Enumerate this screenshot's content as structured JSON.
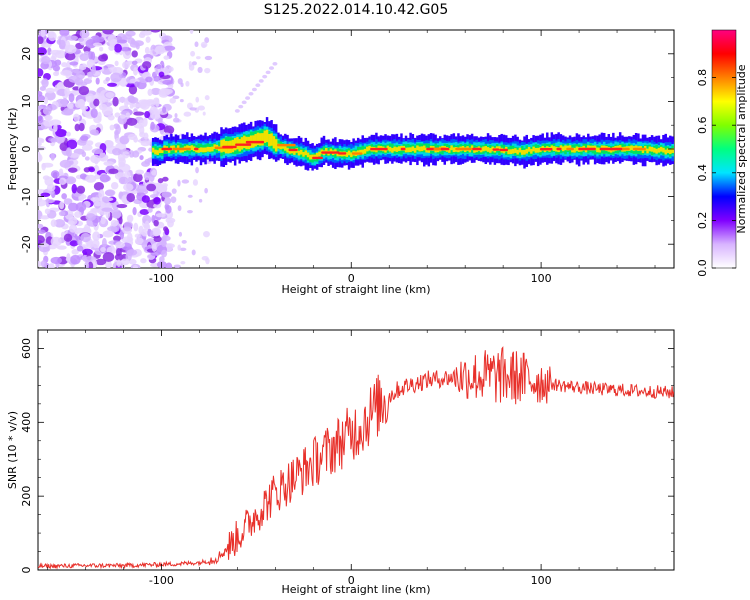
{
  "figure_title": "S125.2022.014.10.42.G05",
  "chart_data": [
    {
      "type": "heatmap",
      "title": "S125.2022.014.10.42.G05",
      "xlabel": "Height of straight line (km)",
      "ylabel": "Frequency (Hz)",
      "xlim": [
        -165,
        170
      ],
      "ylim": [
        -25,
        25
      ],
      "xticks": [
        -100,
        0,
        100
      ],
      "yticks": [
        -20,
        -10,
        0,
        10,
        20
      ],
      "colorbar": {
        "label": "Normalized spectral amplitude",
        "range": [
          0,
          1
        ],
        "ticks": [
          0.0,
          0.2,
          0.4,
          0.6,
          0.8
        ],
        "colormap": [
          "#ffffff",
          "#d8b4ff",
          "#8000ff",
          "#0000ff",
          "#00e5ff",
          "#00ff80",
          "#80ff00",
          "#ffff00",
          "#ff8000",
          "#ff0000",
          "#ff0080"
        ]
      },
      "signal_band": {
        "x_start": -105,
        "center_frequency_trace": [
          {
            "x": -100,
            "y": 0
          },
          {
            "x": -80,
            "y": 0
          },
          {
            "x": -70,
            "y": 0.3
          },
          {
            "x": -60,
            "y": 1
          },
          {
            "x": -50,
            "y": 2
          },
          {
            "x": -45,
            "y": 2.5
          },
          {
            "x": -40,
            "y": 1
          },
          {
            "x": -35,
            "y": 0
          },
          {
            "x": -30,
            "y": -0.5
          },
          {
            "x": -25,
            "y": -1
          },
          {
            "x": -20,
            "y": -2
          },
          {
            "x": -15,
            "y": -0.5
          },
          {
            "x": -10,
            "y": -0.8
          },
          {
            "x": -5,
            "y": -1
          },
          {
            "x": 0,
            "y": -1
          },
          {
            "x": 10,
            "y": 0
          },
          {
            "x": 30,
            "y": 0
          },
          {
            "x": 50,
            "y": 0
          },
          {
            "x": 70,
            "y": 0
          },
          {
            "x": 90,
            "y": -0.5
          },
          {
            "x": 100,
            "y": 0
          },
          {
            "x": 120,
            "y": 0
          },
          {
            "x": 150,
            "y": 0
          },
          {
            "x": 170,
            "y": -0.5
          }
        ]
      }
    },
    {
      "type": "line",
      "xlabel": "Height of straight line (km)",
      "ylabel": "SNR (10 * v/v)",
      "xlim": [
        -165,
        170
      ],
      "ylim": [
        0,
        650
      ],
      "xticks": [
        -100,
        0,
        100
      ],
      "yticks": [
        0,
        200,
        400,
        600
      ],
      "line_color": "#e8302a",
      "series": [
        {
          "x": [
            -165,
            -140,
            -120,
            -100,
            -90,
            -80,
            -75,
            -70,
            -65,
            -60,
            -55,
            -50,
            -45,
            -40,
            -35,
            -30,
            -25,
            -20,
            -15,
            -10,
            -5,
            0,
            5,
            10,
            15,
            20,
            25,
            30,
            40,
            50,
            60,
            70,
            80,
            90,
            95,
            100,
            110,
            120,
            130,
            140,
            150,
            160,
            170
          ],
          "values": [
            10,
            12,
            12,
            15,
            17,
            20,
            25,
            35,
            60,
            90,
            120,
            150,
            180,
            210,
            230,
            250,
            270,
            290,
            310,
            330,
            350,
            370,
            390,
            420,
            450,
            470,
            490,
            500,
            515,
            520,
            525,
            525,
            525,
            520,
            515,
            510,
            500,
            495,
            490,
            488,
            485,
            483,
            480
          ]
        }
      ]
    }
  ]
}
